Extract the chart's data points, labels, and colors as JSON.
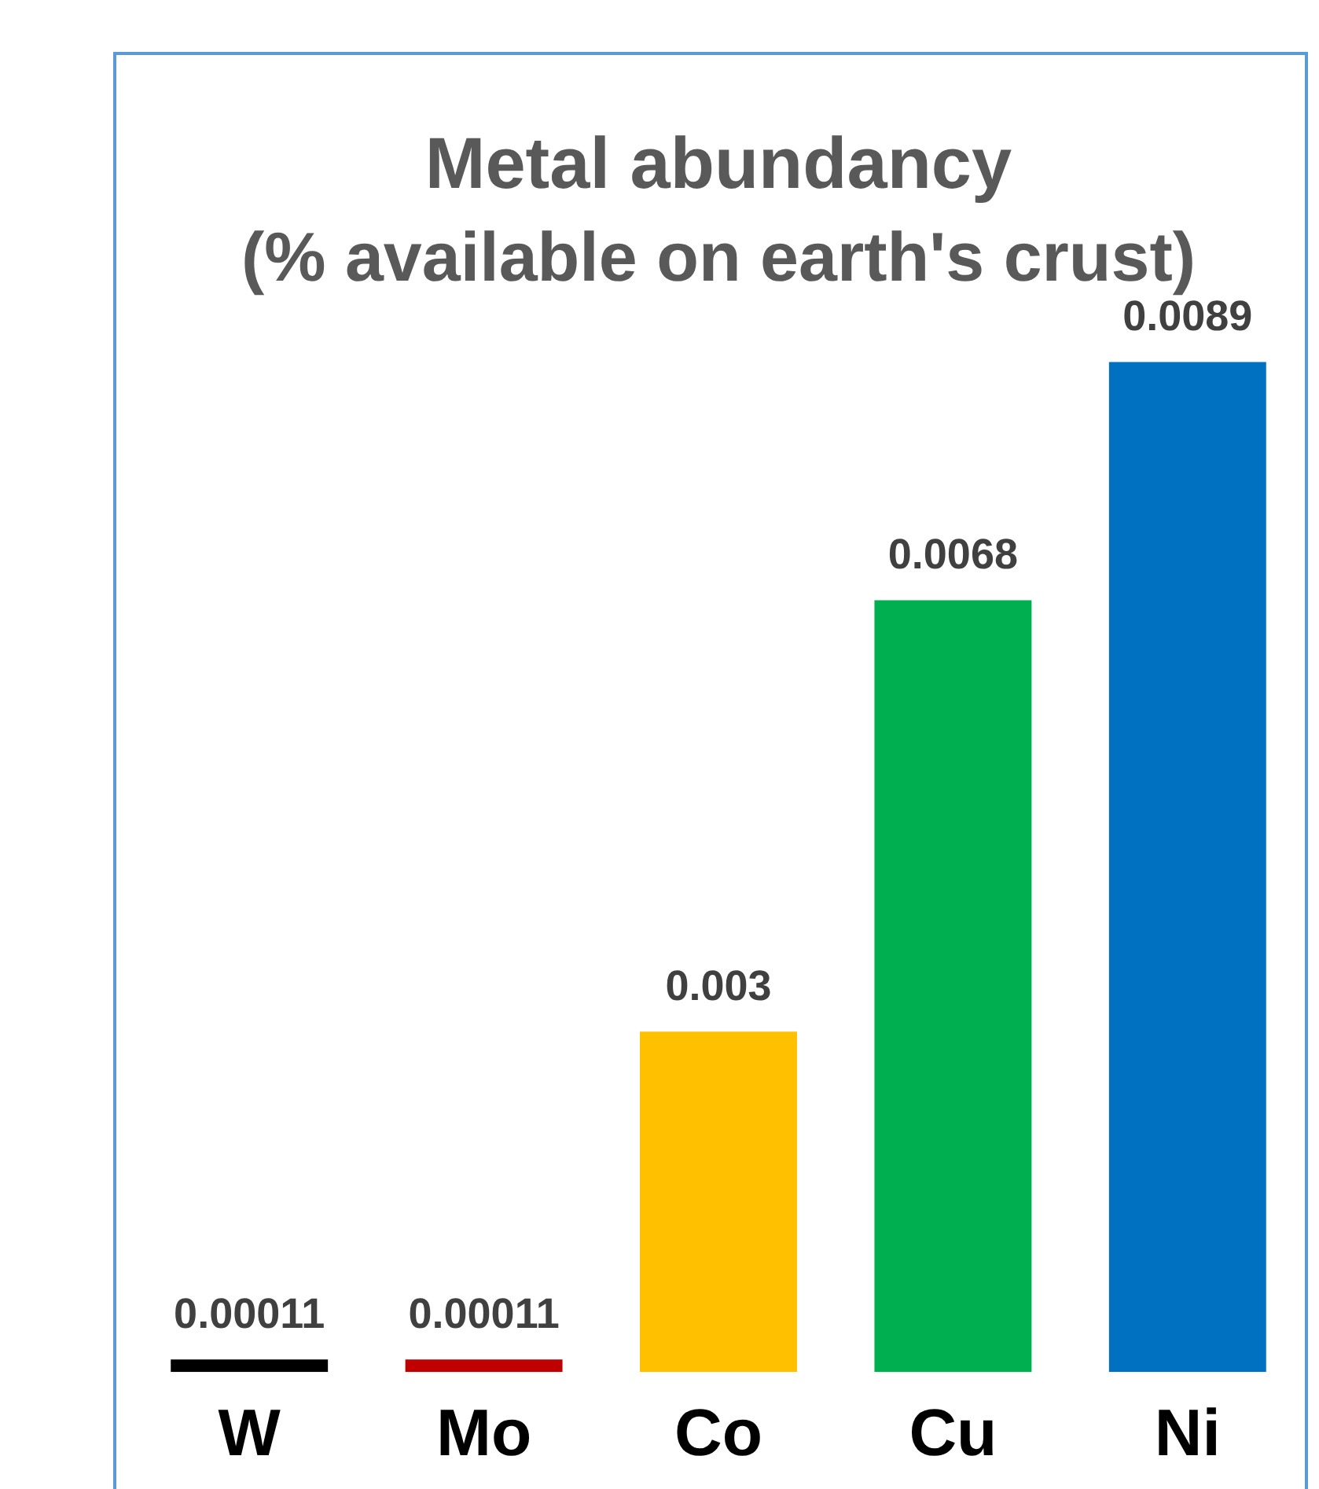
{
  "chart_data": {
    "type": "bar",
    "title": "Metal abundancy",
    "subtitle": "(% available on earth's crust)",
    "categories": [
      "W",
      "Mo",
      "Co",
      "Cu",
      "Ni"
    ],
    "values": [
      0.00011,
      0.00011,
      0.003,
      0.0068,
      0.0089
    ],
    "colors": [
      "#000000",
      "#c00000",
      "#ffc000",
      "#00b050",
      "#0070c0"
    ],
    "data_labels": true,
    "grid": false,
    "legend": false
  }
}
